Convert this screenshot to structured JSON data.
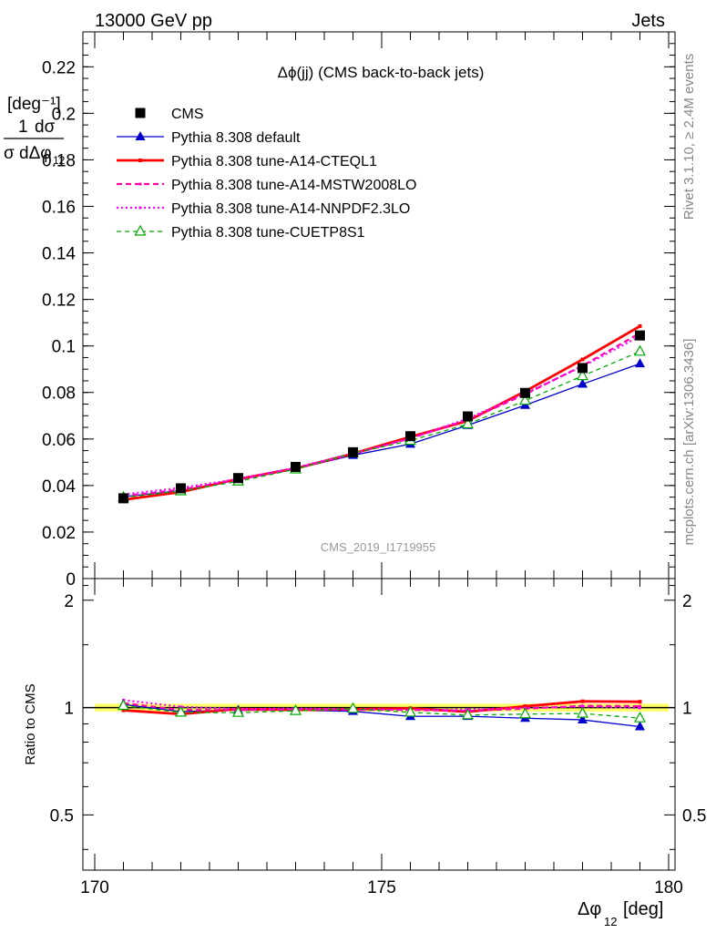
{
  "header": {
    "left": "13000 GeV pp",
    "right": "Jets"
  },
  "side_labels": {
    "rivet": "Rivet 3.1.10, ≥ 2.4M events",
    "mcplots": "mcplots.cern.ch [arXiv:1306.3436]"
  },
  "chart_data": {
    "type": "line",
    "title": "Δϕ(jj) (CMS back-to-back jets)",
    "analysis_label": "CMS_2019_I1719955",
    "xlabel": "Δϕ_12 [deg]",
    "ylabel": "1/σ dσ/dΔϕ_12 [deg^-1]",
    "ratio_ylabel": "Ratio to CMS",
    "xlim": [
      170,
      180
    ],
    "ylim": [
      0,
      0.235
    ],
    "ratio_ylim": [
      0.35,
      2.3
    ],
    "ratio_log_scale": true,
    "legend_position": "top-left",
    "x_ticks": [
      "170",
      "175",
      "180"
    ],
    "y_ticks": [
      "0",
      "0.02",
      "0.04",
      "0.06",
      "0.08",
      "0.1",
      "0.12",
      "0.14",
      "0.16",
      "0.18",
      "0.2",
      "0.22"
    ],
    "ratio_ticks": [
      "0.5",
      "1",
      "2"
    ],
    "x": [
      170.5,
      171.5,
      172.5,
      173.5,
      174.5,
      175.5,
      176.5,
      177.5,
      178.5,
      179.5
    ],
    "series": [
      {
        "name": "CMS",
        "color": "#000000",
        "style": "marker-square",
        "values": [
          0.0345,
          0.0388,
          0.0432,
          0.048,
          0.0543,
          0.0612,
          0.0697,
          0.0798,
          0.0905,
          0.1045
        ]
      },
      {
        "name": "Pythia 8.308 default",
        "color": "#0000cc",
        "style": "line-triangle",
        "values": [
          0.0352,
          0.0378,
          0.0425,
          0.0472,
          0.053,
          0.0578,
          0.0659,
          0.0745,
          0.0836,
          0.0924
        ]
      },
      {
        "name": "Pythia 8.308 tune-A14-CTEQL1",
        "color": "#ff0000",
        "style": "thick-solid",
        "values": [
          0.0339,
          0.0372,
          0.0428,
          0.0473,
          0.0537,
          0.0609,
          0.0678,
          0.0805,
          0.0942,
          0.1085
        ]
      },
      {
        "name": "Pythia 8.308 tune-A14-MSTW2008LO",
        "color": "#ff00aa",
        "style": "dashed",
        "values": [
          0.0355,
          0.0382,
          0.0425,
          0.0474,
          0.0535,
          0.0603,
          0.0682,
          0.0792,
          0.0915,
          0.1055
        ]
      },
      {
        "name": "Pythia 8.308 tune-A14-NNPDF2.3LO",
        "color": "#ff00ff",
        "style": "dotted",
        "values": [
          0.0362,
          0.039,
          0.0428,
          0.0477,
          0.0537,
          0.0602,
          0.0688,
          0.0796,
          0.0912,
          0.1042
        ]
      },
      {
        "name": "Pythia 8.308 tune-CUETP8S1",
        "color": "#00aa00",
        "style": "dashed-open-triangle",
        "values": [
          0.0349,
          0.0376,
          0.0418,
          0.047,
          0.0539,
          0.0593,
          0.0664,
          0.0765,
          0.0871,
          0.0976
        ]
      }
    ],
    "ratio_band": {
      "lower": 0.975,
      "upper": 1.025,
      "color": "#ffff66"
    }
  }
}
